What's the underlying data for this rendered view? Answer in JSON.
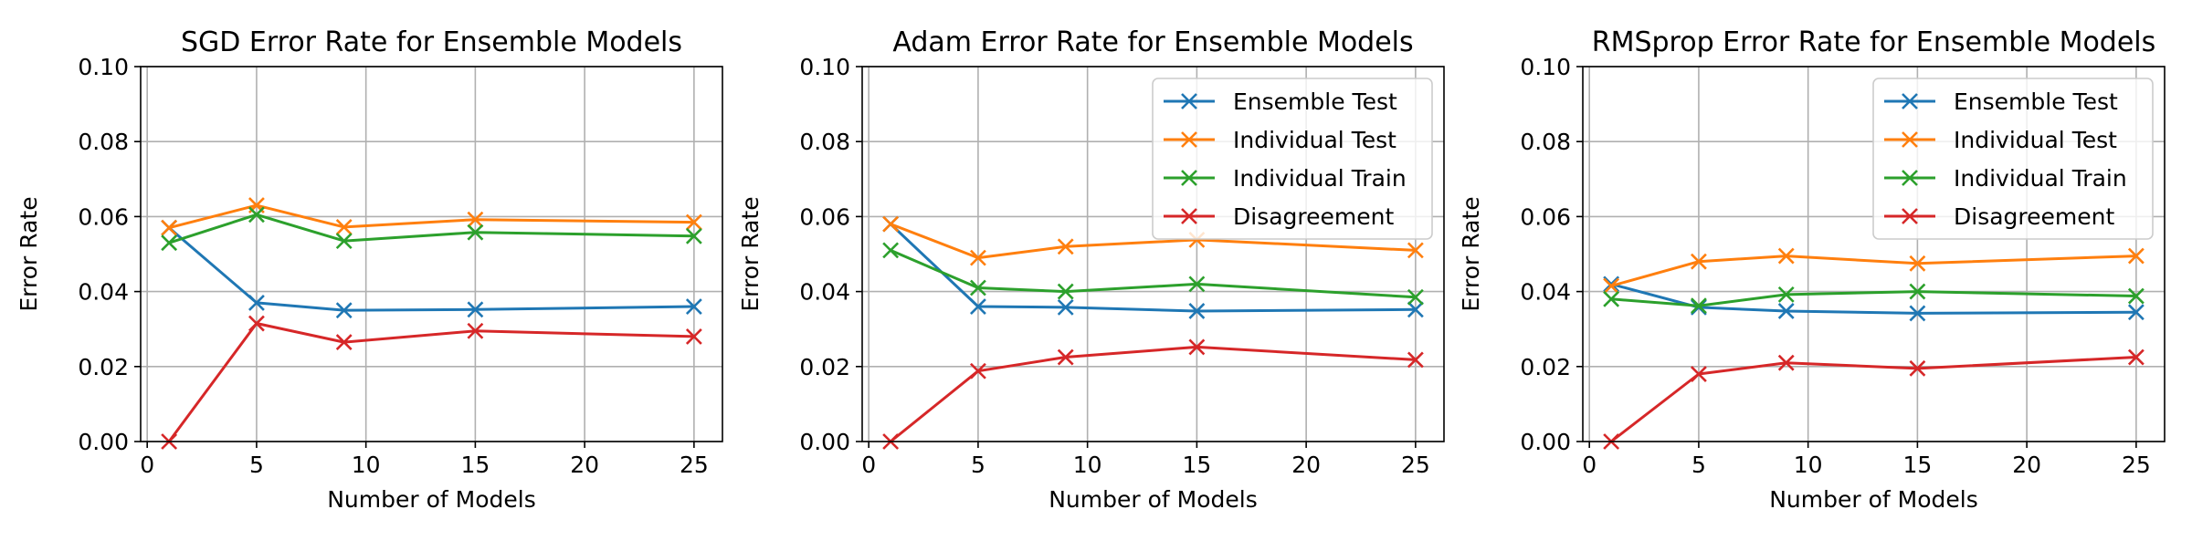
{
  "chart_data": [
    {
      "type": "line",
      "title": "SGD Error Rate for Ensemble Models",
      "xlabel": "Number of Models",
      "ylabel": "Error Rate",
      "xlim": [
        -0.3,
        26.3
      ],
      "ylim": [
        0,
        0.1
      ],
      "xticks": [
        0,
        5,
        10,
        15,
        20,
        25
      ],
      "yticks": [
        0.0,
        0.02,
        0.04,
        0.06,
        0.08,
        0.1
      ],
      "ytick_labels": [
        "0.00",
        "0.02",
        "0.04",
        "0.06",
        "0.08",
        "0.10"
      ],
      "grid": true,
      "legend": null,
      "x": [
        1,
        5,
        9,
        15,
        25
      ],
      "series": [
        {
          "name": "Ensemble Test",
          "color": "#1f77b4",
          "values": [
            0.057,
            0.037,
            0.035,
            0.0352,
            0.036
          ]
        },
        {
          "name": "Individual Test",
          "color": "#ff7f0e",
          "values": [
            0.057,
            0.063,
            0.0572,
            0.0592,
            0.0585
          ]
        },
        {
          "name": "Individual Train",
          "color": "#2ca02c",
          "values": [
            0.053,
            0.0605,
            0.0535,
            0.0558,
            0.0548
          ]
        },
        {
          "name": "Disagreement",
          "color": "#d62728",
          "values": [
            0.0,
            0.0315,
            0.0265,
            0.0295,
            0.028
          ]
        }
      ]
    },
    {
      "type": "line",
      "title": "Adam Error Rate for Ensemble Models",
      "xlabel": "Number of Models",
      "ylabel": "Error Rate",
      "xlim": [
        -0.3,
        26.3
      ],
      "ylim": [
        0,
        0.1
      ],
      "xticks": [
        0,
        5,
        10,
        15,
        20,
        25
      ],
      "yticks": [
        0.0,
        0.02,
        0.04,
        0.06,
        0.08,
        0.1
      ],
      "ytick_labels": [
        "0.00",
        "0.02",
        "0.04",
        "0.06",
        "0.08",
        "0.10"
      ],
      "grid": true,
      "legend": "upper right",
      "x": [
        1,
        5,
        9,
        15,
        25
      ],
      "series": [
        {
          "name": "Ensemble Test",
          "color": "#1f77b4",
          "values": [
            0.058,
            0.036,
            0.0358,
            0.0348,
            0.0352
          ]
        },
        {
          "name": "Individual Test",
          "color": "#ff7f0e",
          "values": [
            0.058,
            0.049,
            0.052,
            0.0538,
            0.051
          ]
        },
        {
          "name": "Individual Train",
          "color": "#2ca02c",
          "values": [
            0.051,
            0.041,
            0.04,
            0.042,
            0.0385
          ]
        },
        {
          "name": "Disagreement",
          "color": "#d62728",
          "values": [
            0.0,
            0.0188,
            0.0225,
            0.0252,
            0.0218
          ]
        }
      ]
    },
    {
      "type": "line",
      "title": "RMSprop Error Rate for Ensemble Models",
      "xlabel": "Number of Models",
      "ylabel": "Error Rate",
      "xlim": [
        -0.3,
        26.3
      ],
      "ylim": [
        0,
        0.1
      ],
      "xticks": [
        0,
        5,
        10,
        15,
        20,
        25
      ],
      "yticks": [
        0.0,
        0.02,
        0.04,
        0.06,
        0.08,
        0.1
      ],
      "ytick_labels": [
        "0.00",
        "0.02",
        "0.04",
        "0.06",
        "0.08",
        "0.10"
      ],
      "grid": true,
      "legend": "upper right",
      "x": [
        1,
        5,
        9,
        15,
        25
      ],
      "series": [
        {
          "name": "Ensemble Test",
          "color": "#1f77b4",
          "values": [
            0.042,
            0.0358,
            0.0348,
            0.0342,
            0.0345
          ]
        },
        {
          "name": "Individual Test",
          "color": "#ff7f0e",
          "values": [
            0.0415,
            0.048,
            0.0495,
            0.0475,
            0.0495
          ]
        },
        {
          "name": "Individual Train",
          "color": "#2ca02c",
          "values": [
            0.038,
            0.0362,
            0.0392,
            0.04,
            0.0388
          ]
        },
        {
          "name": "Disagreement",
          "color": "#d62728",
          "values": [
            0.0,
            0.018,
            0.021,
            0.0195,
            0.0225
          ]
        }
      ]
    }
  ]
}
